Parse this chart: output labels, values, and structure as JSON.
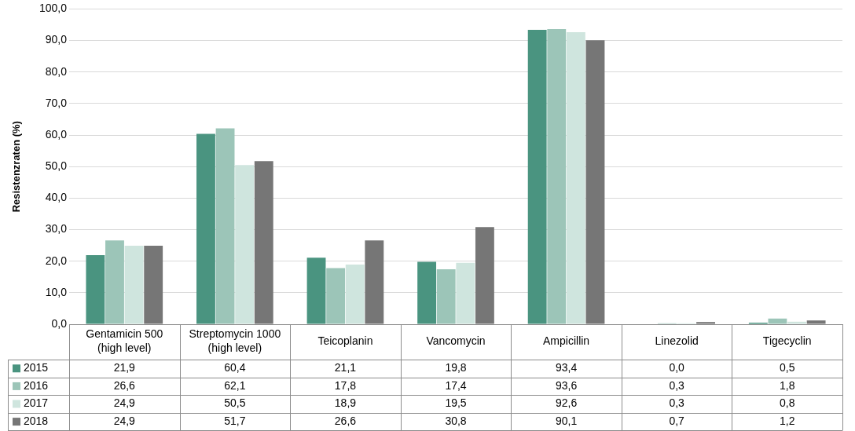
{
  "chart_data": {
    "type": "bar",
    "ylabel": "Resistenzraten (%)",
    "categories": [
      "Gentamicin 500 (high level)",
      "Streptomycin 1000 (high level)",
      "Teicoplanin",
      "Vancomycin",
      "Ampicillin",
      "Linezolid",
      "Tigecyclin"
    ],
    "series": [
      {
        "name": "2015",
        "color": "#4a9480",
        "values": [
          21.9,
          60.4,
          21.1,
          19.8,
          93.4,
          0.0,
          0.5
        ],
        "value_labels": [
          "21,9",
          "60,4",
          "21,1",
          "19,8",
          "93,4",
          "0,0",
          "0,5"
        ]
      },
      {
        "name": "2016",
        "color": "#9cc5b8",
        "values": [
          26.6,
          62.1,
          17.8,
          17.4,
          93.6,
          0.3,
          1.8
        ],
        "value_labels": [
          "26,6",
          "62,1",
          "17,8",
          "17,4",
          "93,6",
          "0,3",
          "1,8"
        ]
      },
      {
        "name": "2017",
        "color": "#cfe5de",
        "values": [
          24.9,
          50.5,
          18.9,
          19.5,
          92.6,
          0.3,
          0.8
        ],
        "value_labels": [
          "24,9",
          "50,5",
          "18,9",
          "19,5",
          "92,6",
          "0,3",
          "0,8"
        ]
      },
      {
        "name": "2018",
        "color": "#767676",
        "values": [
          24.9,
          51.7,
          26.6,
          30.8,
          90.1,
          0.7,
          1.2
        ],
        "value_labels": [
          "24,9",
          "51,7",
          "26,6",
          "30,8",
          "90,1",
          "0,7",
          "1,2"
        ]
      }
    ],
    "ylim": [
      0,
      100
    ],
    "yticks": [
      {
        "value": 0,
        "label": "0,0"
      },
      {
        "value": 10,
        "label": "10,0"
      },
      {
        "value": 20,
        "label": "20,0"
      },
      {
        "value": 30,
        "label": "30,0"
      },
      {
        "value": 40,
        "label": "40,0"
      },
      {
        "value": 50,
        "label": "50,0"
      },
      {
        "value": 60,
        "label": "60,0"
      },
      {
        "value": 70,
        "label": "70,0"
      },
      {
        "value": 80,
        "label": "80,0"
      },
      {
        "value": 90,
        "label": "90,0"
      },
      {
        "value": 100,
        "label": "100,0"
      }
    ],
    "grid": "y",
    "legend": "bottom"
  }
}
